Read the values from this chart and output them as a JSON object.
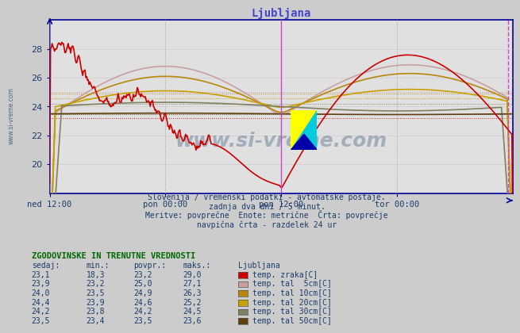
{
  "title": "Ljubljana",
  "title_color": "#4444cc",
  "bg_color": "#cccccc",
  "plot_bg_color": "#e0e0e0",
  "xlim": [
    0,
    576
  ],
  "ylim": [
    18.0,
    30.0
  ],
  "yticks": [
    20,
    22,
    24,
    26,
    28
  ],
  "xtick_labels": [
    "ned 12:00",
    "pon 00:00",
    "pon 12:00",
    "tor 00:00"
  ],
  "xtick_positions": [
    0,
    144,
    288,
    432
  ],
  "vline_solid": [
    288
  ],
  "vline_dashed": [
    570
  ],
  "vline_color": "#cc44cc",
  "hline_positions": [
    23.2,
    25.0,
    24.9,
    24.6,
    24.2,
    23.5
  ],
  "hline_colors": [
    "#dd2222",
    "#c8a0a0",
    "#b8860b",
    "#c8a000",
    "#808060",
    "#604010"
  ],
  "watermark": "www.si-vreme.com",
  "watermark_color": "#1a3a6a",
  "left_label": "www.si-vreme.com",
  "subtitle_lines": [
    "Slovenija / vremenski podatki - avtomatske postaje.",
    "zadnja dva dni / 5 minut.",
    "Meritve: povprečne  Enote: metrične  Črta: povprečje",
    "navpična črta - razdelek 24 ur"
  ],
  "subtitle_color": "#1a3a6a",
  "table_header": "ZGODOVINSKE IN TRENUTNE VREDNOSTI",
  "table_cols": [
    "sedaj:",
    "min.:",
    "povpr.:",
    "maks.:",
    "Ljubljana"
  ],
  "table_data": [
    [
      "23,1",
      "18,3",
      "23,2",
      "29,0",
      "temp. zraka[C]",
      "#cc0000"
    ],
    [
      "23,9",
      "23,2",
      "25,0",
      "27,1",
      "temp. tal  5cm[C]",
      "#c8a0a0"
    ],
    [
      "24,0",
      "23,5",
      "24,9",
      "26,3",
      "temp. tal 10cm[C]",
      "#b8860b"
    ],
    [
      "24,4",
      "23,9",
      "24,6",
      "25,2",
      "temp. tal 20cm[C]",
      "#c8a000"
    ],
    [
      "24,2",
      "23,8",
      "24,2",
      "24,5",
      "temp. tal 30cm[C]",
      "#808060"
    ],
    [
      "23,5",
      "23,4",
      "23,5",
      "23,6",
      "temp. tal 50cm[C]",
      "#604010"
    ]
  ],
  "axis_color": "#000099",
  "grid_color": "#c8c8c8",
  "red_vgrid_color": "#dd8888",
  "tick_color": "#1a3a6a",
  "line_colors": [
    "#cc0000",
    "#c8a0a0",
    "#b8860b",
    "#c8a000",
    "#808060",
    "#604010"
  ],
  "line_widths": [
    1.2,
    1.2,
    1.2,
    1.2,
    1.2,
    1.2
  ]
}
